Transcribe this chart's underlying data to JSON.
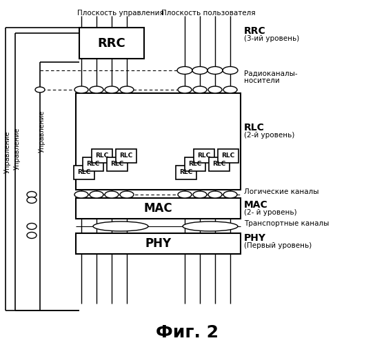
{
  "bg_color": "#ffffff",
  "line_color": "#000000",
  "title": "Фиг. 2",
  "label_control_plane": "Плоскость управления",
  "label_user_plane": "Плоскость пользователя",
  "label_rrc": "RRC",
  "label_rrc_level": "(3-ий уровень)",
  "label_radio_bearers_1": "Радиоканалы-",
  "label_radio_bearers_2": "носители",
  "label_rlc": "RLC",
  "label_rlc_level": "(2-й уровень)",
  "label_logical_channels": "Логические каналы",
  "label_mac": "MAC",
  "label_mac_level": "(2- й уровень)",
  "label_transport_channels": "Транспортные каналы",
  "label_phy": "PHY",
  "label_phy_level": "(Первый уровень)",
  "label_mgmt": "Управление"
}
